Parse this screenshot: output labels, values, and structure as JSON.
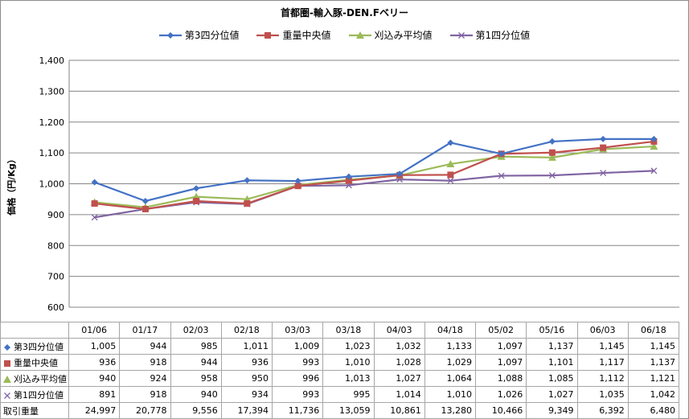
{
  "chart_data": {
    "type": "line",
    "title": "首都圏-輸入豚-DEN.Fベリー",
    "ylabel": "価格（円/Kg）",
    "ylim": [
      600,
      1400
    ],
    "yticks": [
      600,
      700,
      800,
      900,
      1000,
      1100,
      1200,
      1300,
      1400
    ],
    "ytick_labels": [
      "600",
      "700",
      "800",
      "900",
      "1,000",
      "1,100",
      "1,200",
      "1,300",
      "1,400"
    ],
    "grid": true,
    "legend_position": "top",
    "categories": [
      "01/06",
      "01/17",
      "02/03",
      "02/18",
      "03/03",
      "03/18",
      "04/03",
      "04/18",
      "05/02",
      "05/16",
      "06/03",
      "06/18"
    ],
    "series": [
      {
        "name": "第3四分位値",
        "color": "#4472c4",
        "marker": "diamond",
        "values": [
          1005,
          944,
          985,
          1011,
          1009,
          1023,
          1032,
          1133,
          1097,
          1137,
          1145,
          1145
        ],
        "labels": [
          "1,005",
          "944",
          "985",
          "1,011",
          "1,009",
          "1,023",
          "1,032",
          "1,133",
          "1,097",
          "1,137",
          "1,145",
          "1,145"
        ]
      },
      {
        "name": "重量中央値",
        "color": "#c0504d",
        "marker": "square",
        "values": [
          936,
          918,
          944,
          936,
          993,
          1010,
          1028,
          1029,
          1097,
          1101,
          1117,
          1137
        ],
        "labels": [
          "936",
          "918",
          "944",
          "936",
          "993",
          "1,010",
          "1,028",
          "1,029",
          "1,097",
          "1,101",
          "1,117",
          "1,137"
        ]
      },
      {
        "name": "刈込み平均値",
        "color": "#9bbb59",
        "marker": "triangle",
        "values": [
          940,
          924,
          958,
          950,
          996,
          1013,
          1027,
          1064,
          1088,
          1085,
          1112,
          1121
        ],
        "labels": [
          "940",
          "924",
          "958",
          "950",
          "996",
          "1,013",
          "1,027",
          "1,064",
          "1,088",
          "1,085",
          "1,112",
          "1,121"
        ]
      },
      {
        "name": "第1四分位値",
        "color": "#8064a2",
        "marker": "x",
        "values": [
          891,
          918,
          940,
          934,
          993,
          995,
          1014,
          1010,
          1026,
          1027,
          1035,
          1042
        ],
        "labels": [
          "891",
          "918",
          "940",
          "934",
          "993",
          "995",
          "1,014",
          "1,010",
          "1,026",
          "1,027",
          "1,035",
          "1,042"
        ]
      }
    ],
    "extra_row": {
      "name": "取引重量",
      "values": [
        24997,
        20778,
        9556,
        17394,
        11736,
        13059,
        10861,
        13280,
        10466,
        9349,
        6392,
        6480
      ],
      "labels": [
        "24,997",
        "20,778",
        "9,556",
        "17,394",
        "11,736",
        "13,059",
        "10,861",
        "13,280",
        "10,466",
        "9,349",
        "6,392",
        "6,480"
      ]
    }
  }
}
